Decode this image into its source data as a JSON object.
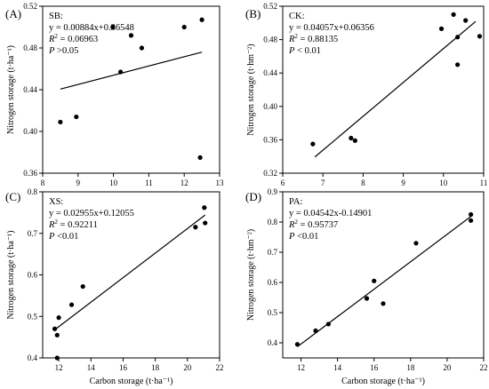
{
  "chart_data": [
    {
      "type": "scatter",
      "panel_label": "(A)",
      "title": "SB:",
      "ylabel": "Nitrogen storage (t·ha⁻¹)",
      "xlabel": "",
      "xlim": [
        8,
        13
      ],
      "ylim": [
        0.36,
        0.52
      ],
      "xticks": [
        "8",
        "9",
        "10",
        "11",
        "12",
        "13"
      ],
      "yticks": [
        "0.36",
        "0.40",
        "0.44",
        "0.48",
        "0.52"
      ],
      "annotation": {
        "equation": "y = 0.00884x+0.36548",
        "r2_label": "R",
        "r2_value": " = 0.06963",
        "p_label": "P",
        "p_value": " >0.05"
      },
      "fit": {
        "slope": 0.00884,
        "intercept": 0.36548,
        "x_range": [
          8.5,
          12.5
        ]
      },
      "points": [
        {
          "x": 8.5,
          "y": 0.409
        },
        {
          "x": 8.95,
          "y": 0.414
        },
        {
          "x": 9.98,
          "y": 0.5
        },
        {
          "x": 10.2,
          "y": 0.457
        },
        {
          "x": 10.5,
          "y": 0.492
        },
        {
          "x": 10.8,
          "y": 0.48
        },
        {
          "x": 12.0,
          "y": 0.5
        },
        {
          "x": 12.5,
          "y": 0.507
        },
        {
          "x": 12.45,
          "y": 0.375
        }
      ]
    },
    {
      "type": "scatter",
      "panel_label": "(B)",
      "title": "CK:",
      "ylabel": "Nitrogen storage (t·hm⁻²)",
      "xlabel": "",
      "xlim": [
        6,
        11
      ],
      "ylim": [
        0.32,
        0.52
      ],
      "xticks": [
        "6",
        "7",
        "8",
        "9",
        "10",
        "11"
      ],
      "yticks": [
        "0.32",
        "0.36",
        "0.40",
        "0.44",
        "0.48",
        "0.52"
      ],
      "annotation": {
        "equation": "y = 0.04057x+0.06356",
        "r2_label": "R",
        "r2_value": " = 0.88135",
        "p_label": "P",
        "p_value": " < 0.01"
      },
      "fit": {
        "slope": 0.04057,
        "intercept": 0.06356,
        "x_range": [
          6.8,
          10.8
        ]
      },
      "points": [
        {
          "x": 6.75,
          "y": 0.355
        },
        {
          "x": 7.7,
          "y": 0.362
        },
        {
          "x": 7.8,
          "y": 0.359
        },
        {
          "x": 9.95,
          "y": 0.493
        },
        {
          "x": 10.25,
          "y": 0.51
        },
        {
          "x": 10.35,
          "y": 0.483
        },
        {
          "x": 10.35,
          "y": 0.45
        },
        {
          "x": 10.55,
          "y": 0.503
        },
        {
          "x": 10.9,
          "y": 0.484
        }
      ]
    },
    {
      "type": "scatter",
      "panel_label": "(C)",
      "title": "XS:",
      "ylabel": "Nitrogen storage  (t·ha⁻¹)",
      "xlabel": "Carbon storage (t·ha⁻¹)",
      "xlim": [
        11,
        22
      ],
      "ylim": [
        0.4,
        0.8
      ],
      "xticks": [
        "12",
        "14",
        "16",
        "18",
        "20",
        "22"
      ],
      "yticks": [
        "0.4",
        "0.5",
        "0.6",
        "0.7",
        "0.8"
      ],
      "annotation": {
        "equation": "y = 0.02955x+0.12055",
        "r2_label": "R",
        "r2_value": " = 0.92211",
        "p_label": "P",
        "p_value": " <0.01"
      },
      "fit": {
        "slope": 0.02955,
        "intercept": 0.12055,
        "x_range": [
          11.7,
          21.1
        ]
      },
      "points": [
        {
          "x": 11.75,
          "y": 0.47
        },
        {
          "x": 11.9,
          "y": 0.455
        },
        {
          "x": 12.0,
          "y": 0.497
        },
        {
          "x": 11.9,
          "y": 0.4
        },
        {
          "x": 12.8,
          "y": 0.528
        },
        {
          "x": 13.5,
          "y": 0.572
        },
        {
          "x": 20.5,
          "y": 0.715
        },
        {
          "x": 21.05,
          "y": 0.762
        },
        {
          "x": 21.1,
          "y": 0.725
        }
      ]
    },
    {
      "type": "scatter",
      "panel_label": "(D)",
      "title": "PA:",
      "ylabel": "Nitrogen storage  (t·hm⁻²)",
      "xlabel": "Carbon storage (t·ha⁻¹)",
      "xlim": [
        11,
        22
      ],
      "ylim": [
        0.35,
        0.9
      ],
      "xticks": [
        "12",
        "14",
        "16",
        "18",
        "20",
        "22"
      ],
      "yticks": [
        "0.4",
        "0.5",
        "0.6",
        "0.7",
        "0.8",
        "0.9"
      ],
      "annotation": {
        "equation": "y = 0.04542x-0.14901",
        "r2_label": "R",
        "r2_value": " = 0.95737",
        "p_label": "P",
        "p_value": " <0.01"
      },
      "fit": {
        "slope": 0.04542,
        "intercept": -0.14901,
        "x_range": [
          11.8,
          21.3
        ]
      },
      "points": [
        {
          "x": 11.8,
          "y": 0.395
        },
        {
          "x": 12.8,
          "y": 0.44
        },
        {
          "x": 13.5,
          "y": 0.462
        },
        {
          "x": 15.6,
          "y": 0.547
        },
        {
          "x": 16.0,
          "y": 0.605
        },
        {
          "x": 16.5,
          "y": 0.53
        },
        {
          "x": 18.3,
          "y": 0.73
        },
        {
          "x": 21.3,
          "y": 0.825
        },
        {
          "x": 21.3,
          "y": 0.805
        }
      ]
    }
  ]
}
